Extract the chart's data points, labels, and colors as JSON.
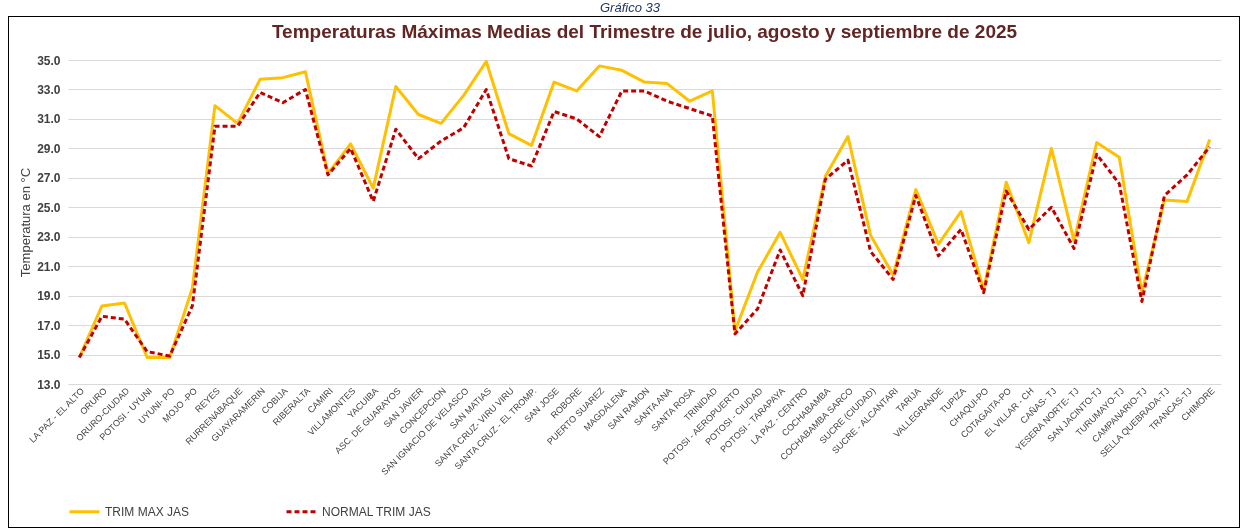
{
  "chart_data": {
    "type": "line",
    "title": "Temperaturas  Máximas Medias del Trimestre de julio, agosto y septiembre de 2025",
    "ylabel": "Temperatura en °C",
    "annotations": [
      "Gráfico 33"
    ],
    "categories": [
      "LA PAZ - EL ALTO",
      "ORURO",
      "ORURO-CIUDAD",
      "POTOSI - UYUNI",
      "UYUNI- PO",
      "MOJO -PO",
      "REYES",
      "RURRENABAQUE",
      "GUAYARAMERIN",
      "COBIJA",
      "RIBERALTA",
      "CAMIRI",
      "VILLAMONTES",
      "YACUIBA",
      "ASC. DE GUARAYOS",
      "SAN JAVIER",
      "CONCEPCION",
      "SAN IGNACIO DE VELASCO",
      "SAN MATIAS",
      "SANTA CRUZ- VIRU VIRU",
      "SANTA CRUZ - EL TROMP.",
      "SAN JOSE",
      "ROBORE",
      "PUERTO SUAREZ",
      "MAGDALENA",
      "SAN RAMON",
      "SANTA ANA",
      "SANTA ROSA",
      "TRINIDAD",
      "POTOSI - AEROPUERTO",
      "POTOSI - CIUDAD",
      "POTOSI - TARAPAYA",
      "LA PAZ - CENTRO",
      "COCHABAMBA",
      "COCHABAMBA SARCO",
      "SUCRE (CIUDAD)",
      "SUCRE - ALCANTARI",
      "TARIJA",
      "VALLEGRANDE",
      "TUPIZA",
      "CHAQUI-PO",
      "COTAGAITA-PO",
      "EL VILLAR - CH",
      "CAÑAS- TJ",
      "YESERA NORTE- TJ",
      "SAN JACINTO-TJ",
      "TURUMAYO-TJ",
      "CAMPANARIO-TJ",
      "SELLA QUEBRADA-TJ",
      "TRANCAS-TJ",
      "CHIMORE"
    ],
    "series": [
      {
        "name": "TRIM MAX JAS",
        "color": "#ffc000",
        "line_style": "solid",
        "values": [
          14.8,
          18.3,
          18.5,
          14.8,
          14.8,
          19.5,
          31.9,
          30.7,
          33.7,
          33.8,
          34.2,
          27.3,
          29.3,
          26.3,
          33.2,
          31.3,
          30.7,
          32.6,
          34.9,
          30.0,
          29.2,
          33.5,
          32.9,
          34.6,
          34.3,
          33.5,
          33.4,
          32.2,
          32.9,
          16.6,
          20.6,
          23.3,
          20.1,
          27.1,
          29.8,
          23.1,
          20.4,
          26.2,
          22.5,
          24.7,
          19.4,
          26.7,
          22.6,
          29.0,
          22.7,
          29.4,
          28.4,
          19.2,
          25.5,
          25.4,
          29.6
        ]
      },
      {
        "name": "NORMAL TRIM JAS",
        "color": "#c00000",
        "line_style": "dashed",
        "values": [
          14.8,
          17.6,
          17.4,
          15.2,
          14.9,
          18.3,
          30.5,
          30.5,
          32.8,
          32.1,
          33.0,
          27.2,
          29.0,
          25.4,
          30.3,
          28.3,
          29.5,
          30.4,
          33.0,
          28.3,
          27.8,
          31.5,
          31.0,
          29.8,
          32.9,
          32.9,
          32.2,
          31.7,
          31.2,
          16.4,
          18.1,
          22.1,
          19.0,
          26.9,
          28.2,
          22.0,
          20.1,
          25.8,
          21.7,
          23.5,
          19.2,
          26.1,
          23.5,
          25.0,
          22.2,
          28.6,
          26.6,
          18.6,
          25.8,
          27.2,
          29.1
        ]
      }
    ],
    "ylim": [
      13,
      35
    ],
    "yticks": [
      {
        "value": 13,
        "label": "13.0"
      },
      {
        "value": 15,
        "label": "15.0"
      },
      {
        "value": 17,
        "label": "17.0"
      },
      {
        "value": 19,
        "label": "19.0"
      },
      {
        "value": 21,
        "label": "21.0"
      },
      {
        "value": 23,
        "label": "23.0"
      },
      {
        "value": 25,
        "label": "25.0"
      },
      {
        "value": 27,
        "label": "27.0"
      },
      {
        "value": 29,
        "label": "29.0"
      },
      {
        "value": 31,
        "label": "31.0"
      },
      {
        "value": 33,
        "label": "33.0"
      },
      {
        "value": 35,
        "label": "35.0"
      }
    ],
    "grid": "y",
    "legend": "bottom",
    "marker": "none"
  }
}
